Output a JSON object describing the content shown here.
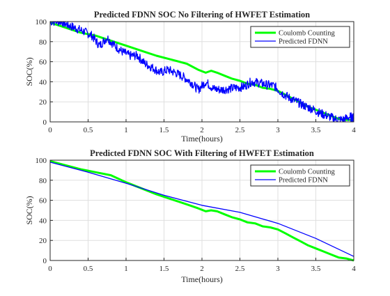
{
  "chart_data": [
    {
      "type": "line",
      "title": "Predicted FDNN SOC No Filtering of HWFET Estimation",
      "xlabel": "Time(hours)",
      "ylabel": "SOC(%)",
      "xlim": [
        0,
        4
      ],
      "ylim": [
        0,
        100
      ],
      "xticks": [
        "0",
        "0.5",
        "1",
        "1.5",
        "2",
        "2.5",
        "3",
        "3.5",
        "4"
      ],
      "yticks": [
        "0",
        "20",
        "40",
        "60",
        "80",
        "100"
      ],
      "grid": true,
      "legend_position": "top-right",
      "series": [
        {
          "name": "Coulomb Counting",
          "color": "#00ff00",
          "x": [
            0,
            0.2,
            0.4,
            0.6,
            0.8,
            1.0,
            1.2,
            1.4,
            1.6,
            1.8,
            1.95,
            2.05,
            2.12,
            2.2,
            2.3,
            2.4,
            2.5,
            2.6,
            2.7,
            2.8,
            2.9,
            3.0,
            3.1,
            3.2,
            3.3,
            3.4,
            3.5,
            3.6,
            3.7,
            3.8,
            3.9,
            4.0
          ],
          "y": [
            99,
            94,
            89,
            86,
            81,
            76,
            71,
            66,
            62,
            58,
            52,
            49,
            51,
            49,
            46,
            43,
            41,
            38,
            37,
            34,
            33,
            31,
            27,
            23,
            19,
            15,
            12,
            9,
            6,
            3,
            2,
            2
          ]
        },
        {
          "name": "Predicted FDNN",
          "color": "#0000ff",
          "noise": "high",
          "x": [
            0,
            0.15,
            0.25,
            0.35,
            0.45,
            0.55,
            0.65,
            0.75,
            0.85,
            0.95,
            1.05,
            1.15,
            1.25,
            1.35,
            1.45,
            1.55,
            1.65,
            1.75,
            1.85,
            1.95,
            2.05,
            2.15,
            2.25,
            2.35,
            2.45,
            2.55,
            2.65,
            2.75,
            2.85,
            2.95,
            3.05,
            3.15,
            3.25,
            3.35,
            3.45,
            3.55,
            3.65,
            3.75,
            3.85,
            3.95,
            4.0
          ],
          "y": [
            100,
            100,
            96,
            93,
            90,
            86,
            76,
            84,
            76,
            70,
            66,
            66,
            58,
            54,
            49,
            52,
            49,
            45,
            40,
            32,
            40,
            33,
            32,
            33,
            34,
            35,
            40,
            39,
            37,
            36,
            29,
            24,
            20,
            16,
            13,
            9,
            6,
            3,
            2,
            5,
            4
          ]
        }
      ]
    },
    {
      "type": "line",
      "title": "Predicted FDNN SOC With Filtering of HWFET Estimation",
      "xlabel": "Time(hours)",
      "ylabel": "SOC(%)",
      "xlim": [
        0,
        4
      ],
      "ylim": [
        0,
        100
      ],
      "xticks": [
        "0",
        "0.5",
        "1",
        "1.5",
        "2",
        "2.5",
        "3",
        "3.5",
        "4"
      ],
      "yticks": [
        "0",
        "20",
        "40",
        "60",
        "80",
        "100"
      ],
      "grid": true,
      "legend_position": "top-right",
      "series": [
        {
          "name": "Coulomb Counting",
          "color": "#00ff00",
          "x": [
            0,
            0.2,
            0.4,
            0.6,
            0.8,
            1.0,
            1.2,
            1.4,
            1.6,
            1.8,
            1.95,
            2.05,
            2.12,
            2.2,
            2.3,
            2.4,
            2.5,
            2.6,
            2.7,
            2.8,
            2.9,
            3.0,
            3.1,
            3.2,
            3.3,
            3.4,
            3.5,
            3.6,
            3.7,
            3.8,
            3.9,
            4.0
          ],
          "y": [
            99,
            95,
            91,
            88,
            85,
            78,
            72,
            66,
            61,
            56,
            52,
            49,
            50,
            49,
            46,
            43,
            41,
            38,
            37,
            34,
            33,
            31,
            27,
            23,
            19,
            15,
            12,
            9,
            6,
            3,
            2,
            0
          ]
        },
        {
          "name": "Predicted FDNN",
          "color": "#0000ff",
          "x": [
            0,
            0.5,
            1.0,
            1.5,
            2.0,
            2.5,
            3.0,
            3.5,
            4.0
          ],
          "y": [
            98,
            88,
            77,
            65,
            55,
            48,
            37,
            22,
            4
          ]
        }
      ]
    }
  ]
}
